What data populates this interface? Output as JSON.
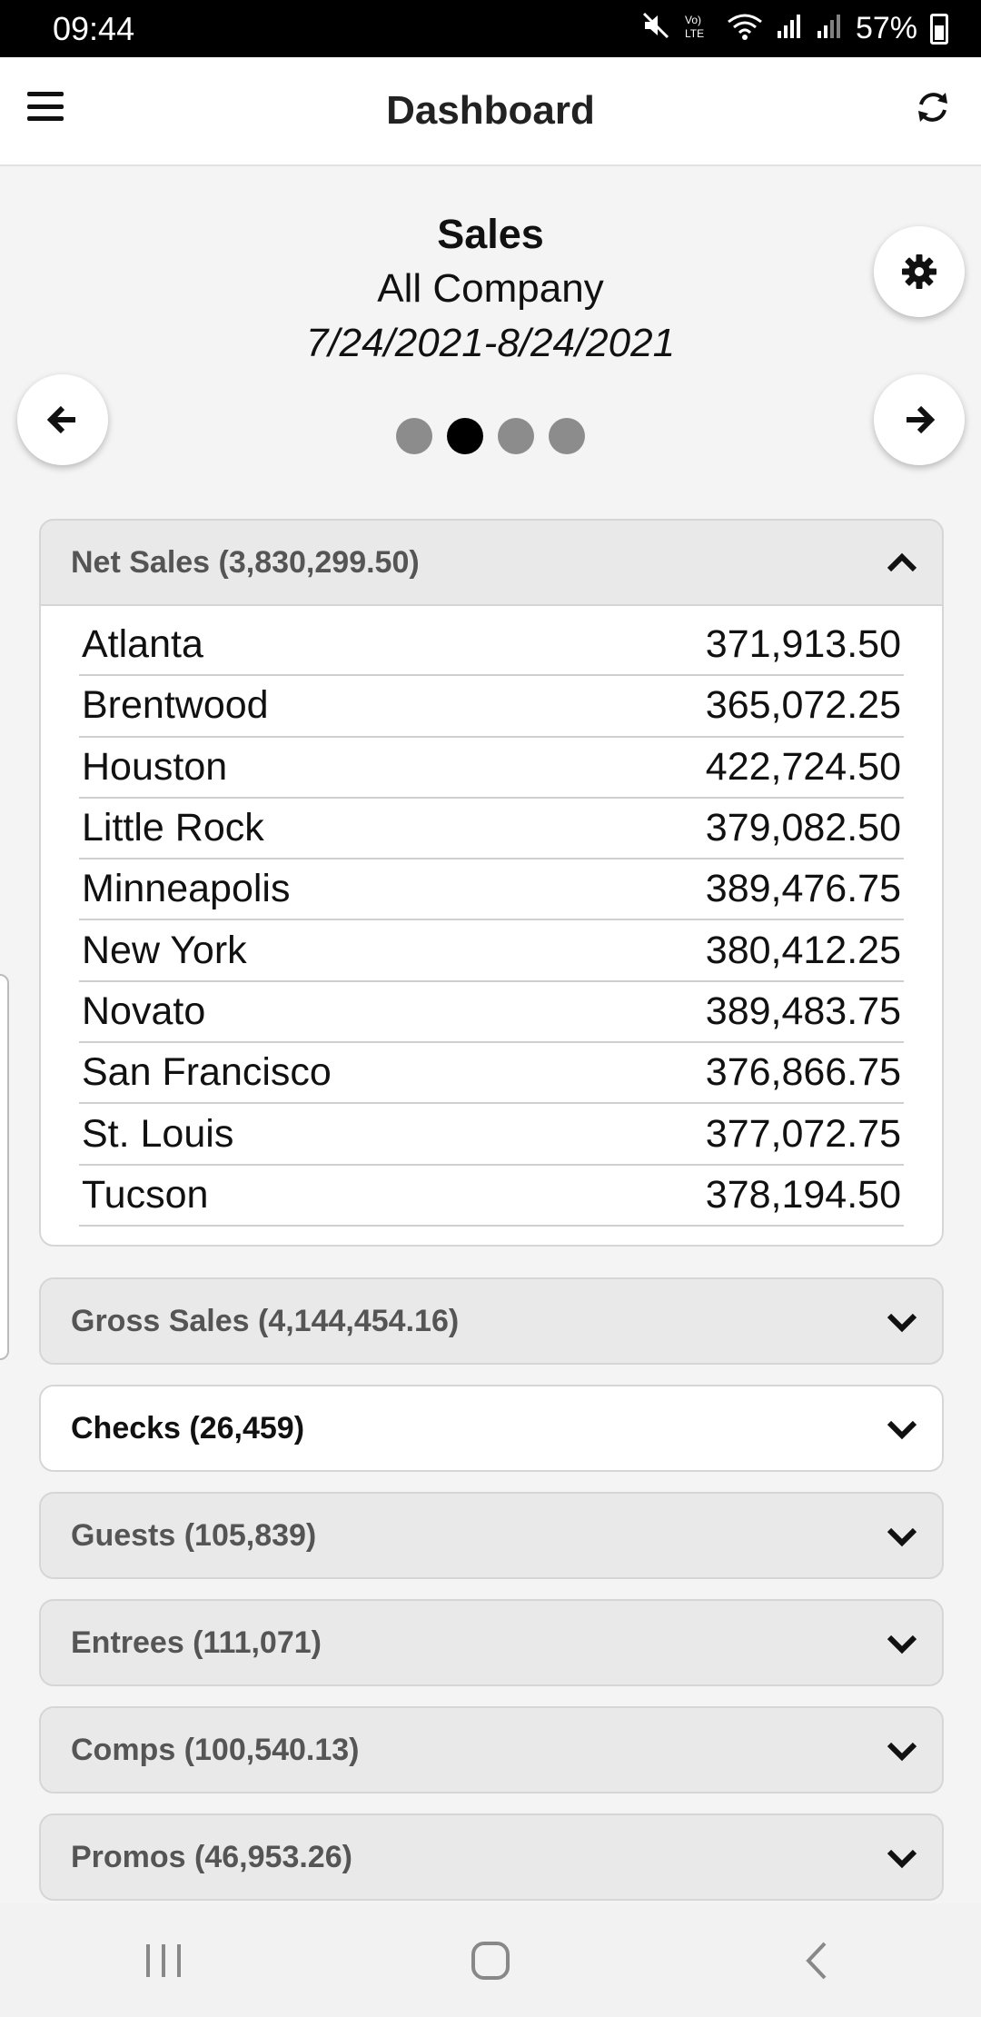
{
  "status_bar": {
    "time": "09:44",
    "battery": "57%",
    "icons": [
      "mute-icon",
      "volte-icon",
      "wifi-icon",
      "signal-icon",
      "signal-icon",
      "battery-icon"
    ]
  },
  "header": {
    "title": "Dashboard",
    "menu_icon": "hamburger-menu-icon",
    "refresh_icon": "refresh-icon"
  },
  "report": {
    "title": "Sales",
    "scope": "All Company",
    "date_range": "7/24/2021-8/24/2021",
    "page_count": 4,
    "active_page": 2
  },
  "sections": [
    {
      "title": "Net Sales (3,830,299.50)",
      "expanded": true,
      "rows": [
        {
          "name": "Atlanta",
          "value": "371,913.50"
        },
        {
          "name": "Brentwood",
          "value": "365,072.25"
        },
        {
          "name": "Houston",
          "value": "422,724.50"
        },
        {
          "name": "Little Rock",
          "value": "379,082.50"
        },
        {
          "name": "Minneapolis",
          "value": "389,476.75"
        },
        {
          "name": "New York",
          "value": "380,412.25"
        },
        {
          "name": "Novato",
          "value": "389,483.75"
        },
        {
          "name": "San Francisco",
          "value": "376,866.75"
        },
        {
          "name": "St. Louis",
          "value": "377,072.75"
        },
        {
          "name": "Tucson",
          "value": "378,194.50"
        }
      ]
    },
    {
      "title": "Gross Sales (4,144,454.16)",
      "expanded": false
    },
    {
      "title": "Checks (26,459)",
      "expanded": false
    },
    {
      "title": "Guests (105,839)",
      "expanded": false
    },
    {
      "title": "Entrees (111,071)",
      "expanded": false
    },
    {
      "title": "Comps (100,540.13)",
      "expanded": false
    },
    {
      "title": "Promos (46,953.26)",
      "expanded": false
    }
  ],
  "colors": {
    "accent": "#000000",
    "inactive_dot": "#8c8c8c",
    "panel_header": "#e9e9e9",
    "background": "#f4f4f4"
  }
}
